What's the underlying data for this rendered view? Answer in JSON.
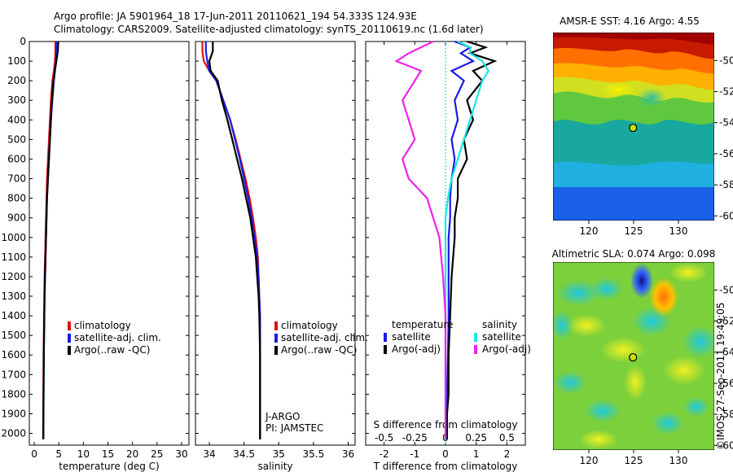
{
  "header": {
    "line1": "Argo profile: JA 5901964_18 17-Jun-2011 20110621_194 54.333S 124.93E",
    "line2": "Climatology: CARS2009. Satellite-adjusted climatology: synTS_20110619.nc (1.6d later)"
  },
  "side_stamp": "©IMOS 27-Sep-2011 19:49:05",
  "colors": {
    "climatology": "#e01010",
    "satellite": "#1a1ae6",
    "argo": "#000000",
    "sat_salinity": "#19e6e6",
    "argo_salinity_diff": "#ee22ee"
  },
  "chart_data": [
    {
      "id": "temperature",
      "type": "line",
      "xlabel": "temperature (deg C)",
      "xlim": [
        -1,
        31.5
      ],
      "xticks": [
        0,
        5,
        10,
        15,
        20,
        25,
        30
      ],
      "ylim": [
        0,
        2060
      ],
      "yticks": [
        0,
        100,
        200,
        300,
        400,
        500,
        600,
        700,
        800,
        900,
        1000,
        1100,
        1200,
        1300,
        1400,
        1500,
        1600,
        1700,
        1800,
        1900,
        2000
      ],
      "legend": [
        "climatology",
        "satellite-adj. clim.",
        "Argo(..raw -QC)"
      ],
      "series": [
        {
          "name": "climatology",
          "color": "#e01010",
          "x": [
            4.3,
            4.3,
            4.2,
            4.0,
            3.7,
            3.4,
            3.2,
            3.0,
            2.8,
            2.6,
            2.5,
            2.4,
            2.3,
            2.2,
            2.1,
            2.05,
            2.0,
            1.95,
            1.9,
            1.85,
            1.8
          ],
          "y": [
            0,
            50,
            100,
            150,
            200,
            300,
            400,
            500,
            600,
            700,
            800,
            900,
            1000,
            1100,
            1200,
            1300,
            1400,
            1500,
            1600,
            1800,
            2030
          ]
        },
        {
          "name": "satellite-adj. clim.",
          "color": "#1a1ae6",
          "x": [
            4.5,
            4.5,
            4.4,
            4.2,
            4.0,
            3.7,
            3.4,
            3.2,
            3.0,
            2.8,
            2.6,
            2.5,
            2.4,
            2.3,
            2.2,
            2.1,
            2.05,
            2.0,
            1.95,
            1.9,
            1.85
          ],
          "y": [
            0,
            50,
            100,
            150,
            200,
            300,
            400,
            500,
            600,
            700,
            800,
            900,
            1000,
            1100,
            1200,
            1300,
            1400,
            1500,
            1600,
            1800,
            2030
          ]
        },
        {
          "name": "Argo(..raw -QC)",
          "color": "#000000",
          "x": [
            4.9,
            4.8,
            4.5,
            4.2,
            3.9,
            3.6,
            3.4,
            3.2,
            3.0,
            2.8,
            2.6,
            2.5,
            2.4,
            2.3,
            2.2,
            2.1,
            2.05,
            2.0,
            1.95,
            1.9,
            1.85
          ],
          "y": [
            0,
            50,
            100,
            150,
            200,
            300,
            400,
            500,
            600,
            700,
            800,
            900,
            1000,
            1100,
            1200,
            1300,
            1400,
            1500,
            1600,
            1800,
            2030
          ]
        }
      ]
    },
    {
      "id": "salinity",
      "type": "line",
      "xlabel": "salinity",
      "xlim": [
        33.8,
        36.1
      ],
      "xticks": [
        34,
        34.5,
        35,
        35.5,
        36
      ],
      "ylim": [
        0,
        2060
      ],
      "legend": [
        "climatology",
        "satellite-adj. clim.",
        "Argo(..raw -QC)"
      ],
      "annotation": [
        "J-ARGO",
        "PI: JAMSTEC"
      ],
      "series": [
        {
          "name": "climatology",
          "color": "#e01010",
          "x": [
            33.9,
            33.9,
            33.92,
            34.0,
            34.1,
            34.2,
            34.3,
            34.38,
            34.45,
            34.52,
            34.58,
            34.63,
            34.67,
            34.7,
            34.71,
            34.72,
            34.73,
            34.73,
            34.73,
            34.73
          ],
          "y": [
            0,
            50,
            100,
            150,
            200,
            300,
            400,
            500,
            600,
            700,
            800,
            900,
            1000,
            1100,
            1200,
            1300,
            1400,
            1600,
            1800,
            2030
          ]
        },
        {
          "name": "satellite-adj. clim.",
          "color": "#1a1ae6",
          "x": [
            33.95,
            33.95,
            33.97,
            34.0,
            34.1,
            34.2,
            34.3,
            34.37,
            34.44,
            34.5,
            34.56,
            34.61,
            34.65,
            34.69,
            34.71,
            34.72,
            34.73,
            34.73,
            34.73,
            34.73
          ],
          "y": [
            0,
            50,
            100,
            150,
            200,
            300,
            400,
            500,
            600,
            700,
            800,
            900,
            1000,
            1100,
            1200,
            1300,
            1400,
            1600,
            1800,
            2030
          ]
        },
        {
          "name": "Argo(..raw -QC)",
          "color": "#000000",
          "x": [
            34.05,
            34.05,
            34.0,
            34.02,
            34.12,
            34.18,
            34.26,
            34.33,
            34.4,
            34.47,
            34.53,
            34.59,
            34.63,
            34.67,
            34.69,
            34.71,
            34.72,
            34.73,
            34.73,
            34.73
          ],
          "y": [
            0,
            50,
            100,
            150,
            200,
            300,
            400,
            500,
            600,
            700,
            800,
            900,
            1000,
            1100,
            1200,
            1300,
            1400,
            1600,
            1800,
            2030
          ]
        }
      ]
    },
    {
      "id": "differences",
      "type": "line",
      "xlabel": "T difference from climatology",
      "xlabel_top": "S difference from climatology",
      "xlim": [
        -2.6,
        2.6
      ],
      "xticks": [
        -2,
        -1,
        0,
        1,
        2
      ],
      "xticks_top": [
        {
          "value": -0.5,
          "label": "-0.5"
        },
        {
          "value": -0.25,
          "label": "-0.25"
        },
        {
          "value": 0,
          "label": "0"
        },
        {
          "value": 0.25,
          "label": "0.25"
        },
        {
          "value": 0.5,
          "label": "0.5"
        }
      ],
      "ylim": [
        0,
        2060
      ],
      "legend_groups": [
        {
          "title": "temperature",
          "items": [
            {
              "label": "satellite",
              "color": "#1a1ae6"
            },
            {
              "label": "Argo(-adj)",
              "color": "#000000"
            }
          ]
        },
        {
          "title": "salinity",
          "items": [
            {
              "label": "satellite",
              "color": "#19e6e6"
            },
            {
              "label": "Argo(-adj)",
              "color": "#ee22ee"
            }
          ]
        }
      ],
      "series": [
        {
          "name": "temperature satellite",
          "color": "#1a1ae6",
          "x": [
            0.3,
            0.8,
            0.5,
            0.9,
            0.2,
            0.6,
            0.3,
            0.4,
            0.2,
            0.3,
            0.2,
            0.15,
            0.15,
            0.1,
            0.1,
            0.1,
            0.08,
            0.05,
            0.05,
            0.05
          ],
          "y": [
            0,
            30,
            60,
            100,
            150,
            200,
            300,
            400,
            500,
            600,
            700,
            800,
            900,
            1000,
            1200,
            1400,
            1600,
            1800,
            1900,
            2030
          ]
        },
        {
          "name": "temperature Argo(-adj)",
          "color": "#000000",
          "x": [
            0.7,
            1.3,
            0.8,
            1.6,
            0.9,
            1.2,
            0.7,
            0.9,
            0.6,
            0.7,
            0.4,
            0.4,
            0.3,
            0.3,
            0.2,
            0.15,
            0.1,
            0.1,
            0.05,
            0.05
          ],
          "y": [
            0,
            30,
            60,
            100,
            150,
            200,
            300,
            400,
            500,
            600,
            700,
            800,
            900,
            1000,
            1200,
            1400,
            1600,
            1800,
            1900,
            2030
          ]
        },
        {
          "name": "salinity satellite",
          "color": "#19e6e6",
          "x": [
            0.1,
            0.2,
            0.2,
            0.3,
            0.35,
            0.3,
            0.25,
            0.2,
            0.15,
            0.1,
            0.05,
            0.02,
            0.0,
            0.0,
            0.0,
            0.0,
            0.0,
            0.0,
            0.0,
            0.0
          ],
          "y": [
            0,
            30,
            60,
            100,
            150,
            200,
            300,
            400,
            500,
            600,
            700,
            800,
            900,
            1000,
            1200,
            1400,
            1600,
            1800,
            1900,
            2030
          ]
        },
        {
          "name": "salinity Argo(-adj)",
          "color": "#ee22ee",
          "x": [
            -0.1,
            -0.2,
            -0.3,
            -0.4,
            -0.2,
            -0.25,
            -0.35,
            -0.3,
            -0.25,
            -0.35,
            -0.3,
            -0.15,
            -0.1,
            -0.05,
            -0.02,
            0.0,
            0.0,
            0.0,
            0.0,
            0.0
          ],
          "y": [
            0,
            30,
            60,
            100,
            150,
            200,
            300,
            400,
            500,
            600,
            700,
            800,
            900,
            1000,
            1200,
            1400,
            1600,
            1800,
            1900,
            2030
          ]
        }
      ]
    },
    {
      "id": "sst-map",
      "type": "heatmap",
      "title": "AMSR-E SST: 4.16 Argo: 4.55",
      "xlim": [
        116,
        134
      ],
      "ylim": [
        -60.3,
        -48.2
      ],
      "xticks": [
        120,
        125,
        130
      ],
      "yticks": [
        -50,
        -52,
        -54,
        -56,
        -58,
        -60
      ],
      "marker": {
        "lon": 124.93,
        "lat": -54.333
      }
    },
    {
      "id": "sla-map",
      "type": "heatmap",
      "title": "Altimetric SLA: 0.074 Argo: 0.098",
      "xlim": [
        116,
        134
      ],
      "ylim": [
        -60.3,
        -48.2
      ],
      "xticks": [
        120,
        125,
        130
      ],
      "yticks": [
        -50,
        -52,
        -54,
        -56,
        -58,
        -60
      ],
      "marker": {
        "lon": 124.93,
        "lat": -54.333
      }
    }
  ]
}
